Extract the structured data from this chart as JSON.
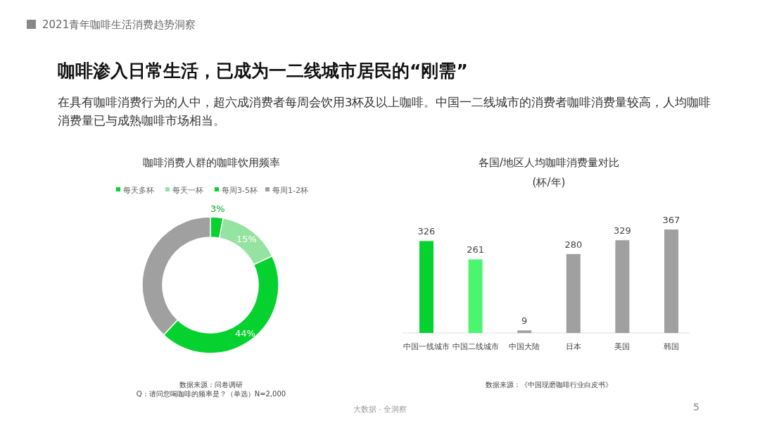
{
  "chart_data": [
    {
      "type": "donut",
      "title": "咖啡消费人群的咖啡饮用频率",
      "categories": [
        "每天多杯",
        "每天一杯",
        "每周3-5杯",
        "每周1-2杯"
      ],
      "values": [
        3,
        15,
        44,
        38
      ],
      "colors": [
        "#05d22e",
        "#95e3a0",
        "#05d22e",
        "#a0a0a0"
      ],
      "value_labels": [
        "3%",
        "15%",
        "44%",
        null
      ],
      "legend": "top",
      "annotations": [
        "2021青年咖啡生活消费趋势洞察",
        "咖啡渗入日常生活，已成为一二线城市居民的“刚需”",
        "在具有咖啡消费行为的人中，超六成消费者每周会饮用3杯及以上咖啡。中国一二线城市的消费者咖啡消费量较高，人均咖啡消费量已与成熟咖啡市场相当。",
        "数据来源：问卷调研",
        "Q：请问您喝咖啡的频率是？（单选）N=2,000",
        "大数据 · 全洞察",
        "5"
      ]
    },
    {
      "type": "bar",
      "title": "各国/地区人均咖啡消费量对比",
      "subtitle": "(杯/年)",
      "categories": [
        "中国一线城市",
        "中国二线城市",
        "中国大陆",
        "日本",
        "美国",
        "韩国"
      ],
      "values": [
        326,
        261,
        9,
        280,
        329,
        367
      ],
      "colors": [
        "#05d22e",
        "#4cf56f",
        "#a0a0a0",
        "#a0a0a0",
        "#a0a0a0",
        "#a0a0a0"
      ],
      "data_labels": true,
      "annotations": [
        "数据来源：《中国现磨咖啡行业白皮书》"
      ]
    }
  ]
}
